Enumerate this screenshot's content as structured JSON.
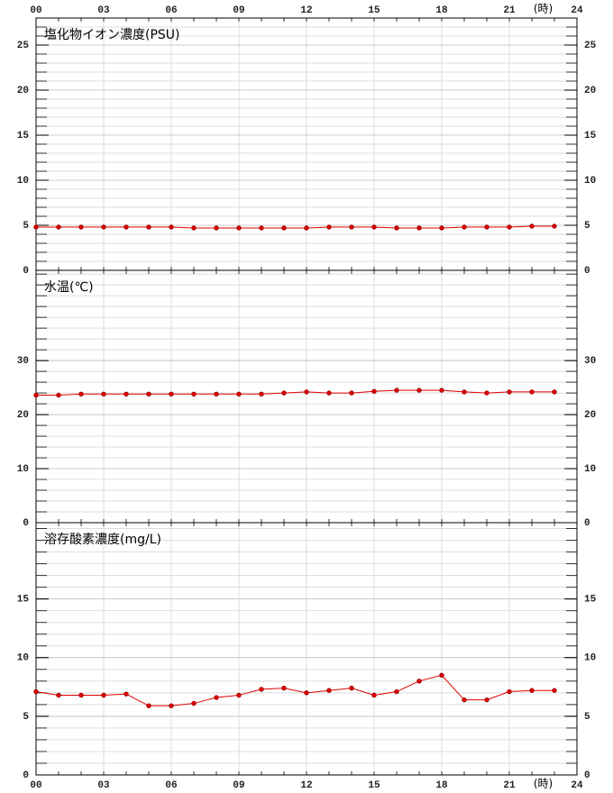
{
  "chart_data": [
    {
      "type": "line",
      "title": "塩化物イオン濃度(PSU)",
      "x_label": "(時)",
      "x": [
        0,
        1,
        2,
        3,
        4,
        5,
        6,
        7,
        8,
        9,
        10,
        11,
        12,
        13,
        14,
        15,
        16,
        17,
        18,
        19,
        20,
        21,
        22,
        23
      ],
      "series": [
        {
          "name": null,
          "color": "#e00000",
          "values": [
            4.8,
            4.8,
            4.8,
            4.8,
            4.8,
            4.8,
            4.8,
            4.7,
            4.7,
            4.7,
            4.7,
            4.7,
            4.7,
            4.8,
            4.8,
            4.8,
            4.7,
            4.7,
            4.7,
            4.8,
            4.8,
            4.8,
            4.9,
            4.9
          ]
        }
      ],
      "xlim": [
        0,
        24
      ],
      "xticks": [
        {
          "value": 0,
          "label": "00"
        },
        {
          "value": 3,
          "label": "03"
        },
        {
          "value": 6,
          "label": "06"
        },
        {
          "value": 9,
          "label": "09"
        },
        12,
        15,
        18,
        21,
        24
      ],
      "ylim": [
        0,
        28
      ],
      "yticks": [
        0,
        5,
        10,
        15,
        20,
        25
      ],
      "minor_step": 1,
      "grid": true
    },
    {
      "type": "line",
      "title": "水温(℃)",
      "x": [
        0,
        1,
        2,
        3,
        4,
        5,
        6,
        7,
        8,
        9,
        10,
        11,
        12,
        13,
        14,
        15,
        16,
        17,
        18,
        19,
        20,
        21,
        22,
        23
      ],
      "series": [
        {
          "name": null,
          "color": "#e00000",
          "values": [
            23.6,
            23.6,
            23.8,
            23.8,
            23.8,
            23.8,
            23.8,
            23.8,
            23.8,
            23.8,
            23.8,
            24.0,
            24.2,
            24.0,
            24.0,
            24.3,
            24.5,
            24.5,
            24.5,
            24.2,
            24.0,
            24.2,
            24.2,
            24.2
          ]
        }
      ],
      "xlim": [
        0,
        24
      ],
      "xgrid": [
        0,
        3,
        6,
        9,
        12,
        15,
        18,
        21,
        24
      ],
      "ylim": [
        0,
        46.7
      ],
      "yticks": [
        0,
        10,
        20,
        30
      ],
      "minor_step": 2,
      "grid": true
    },
    {
      "type": "line",
      "title": "溶存酸素濃度(mg/L)",
      "x_label": "(時)",
      "x": [
        0,
        1,
        2,
        3,
        4,
        5,
        6,
        7,
        8,
        9,
        10,
        11,
        12,
        13,
        14,
        15,
        16,
        17,
        18,
        19,
        20,
        21,
        22,
        23
      ],
      "series": [
        {
          "name": null,
          "color": "#e00000",
          "values": [
            7.1,
            6.8,
            6.8,
            6.8,
            6.9,
            5.9,
            5.9,
            6.1,
            6.6,
            6.8,
            7.3,
            7.4,
            7.0,
            7.2,
            7.4,
            6.8,
            7.1,
            8.0,
            8.5,
            6.4,
            6.4,
            7.1,
            7.2,
            7.2
          ]
        }
      ],
      "xlim": [
        0,
        24
      ],
      "xticks": [
        {
          "value": 0,
          "label": "00"
        },
        {
          "value": 3,
          "label": "03"
        },
        {
          "value": 6,
          "label": "06"
        },
        {
          "value": 9,
          "label": "09"
        },
        12,
        15,
        18,
        21,
        24
      ],
      "ylim": [
        0,
        21.5
      ],
      "yticks": [
        0,
        5,
        10,
        15
      ],
      "minor_step": 1,
      "grid": true
    }
  ]
}
